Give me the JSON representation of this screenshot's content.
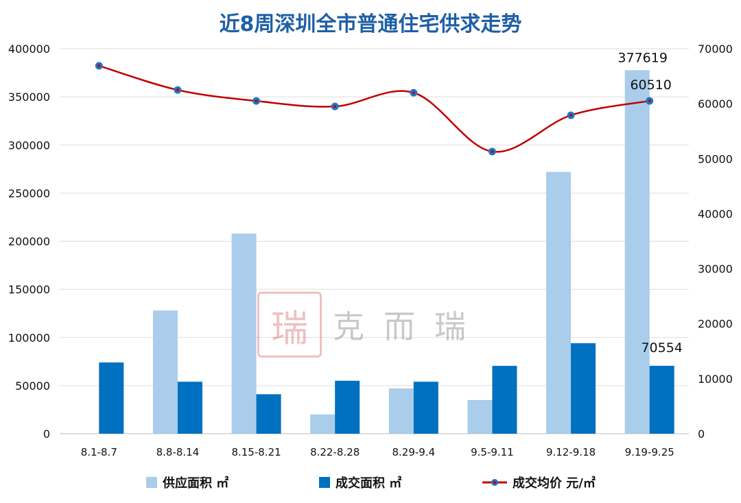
{
  "chart_data": {
    "type": "bar+line",
    "title": "近8周深圳全市普通住宅供求走势",
    "categories": [
      "8.1-8.7",
      "8.8-8.14",
      "8.15-8.21",
      "8.22-8.28",
      "8.29-9.4",
      "9.5-9.11",
      "9.12-9.18",
      "9.19-9.25"
    ],
    "category_labels": [
      "8.1-8.7",
      "8.8-8.14",
      "8.15-8.21",
      "8.22-8.28",
      "8.29-9.4",
      "9.5-9.11",
      "9.12-9.18",
      "9.19-9.25"
    ],
    "series": [
      {
        "name": "供应面积 ㎡",
        "type": "bar",
        "axis": "left",
        "color": "#a9cdea",
        "values": [
          0,
          128000,
          208000,
          20000,
          47000,
          35000,
          272000,
          377619
        ]
      },
      {
        "name": "成交面积 ㎡",
        "type": "bar",
        "axis": "left",
        "color": "#0070c0",
        "values": [
          74000,
          54000,
          41000,
          55000,
          54000,
          70500,
          94000,
          70554
        ]
      },
      {
        "name": "成交均价 元/㎡",
        "type": "line",
        "axis": "right",
        "color": "#c00000",
        "marker_color": "#1f77c4",
        "smooth": true,
        "values": [
          66900,
          62500,
          60500,
          59500,
          62000,
          51300,
          57900,
          60510
        ]
      }
    ],
    "data_labels": [
      "377619",
      "70554",
      "60510"
    ],
    "left_axis": {
      "ylim": [
        0,
        400000
      ],
      "ticks": [
        "0",
        "50000",
        "100000",
        "150000",
        "200000",
        "250000",
        "300000",
        "350000",
        "400000"
      ]
    },
    "right_axis": {
      "ylim": [
        0,
        70000
      ],
      "ticks": [
        "0",
        "10000",
        "20000",
        "30000",
        "40000",
        "50000",
        "60000",
        "70000"
      ]
    },
    "grid": true,
    "legend": "bottom"
  },
  "watermark": {
    "logo_text": "克而瑞"
  }
}
